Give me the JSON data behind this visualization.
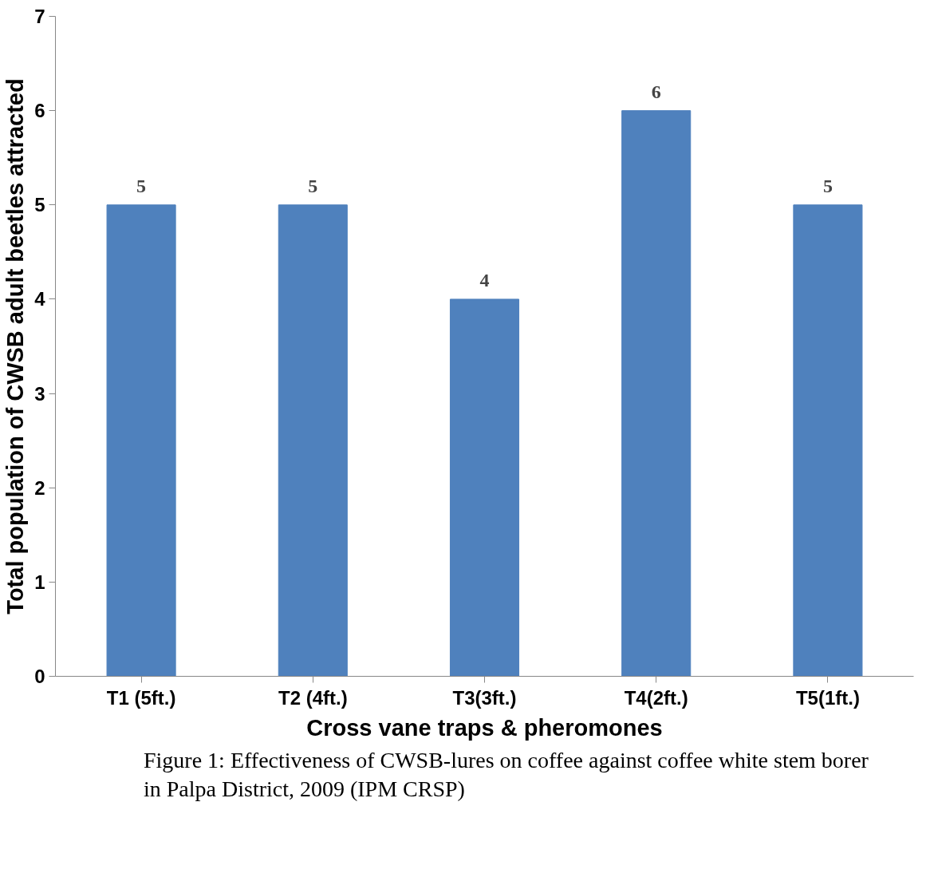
{
  "chart_data": {
    "type": "bar",
    "xlabel": "Cross vane traps & pheromones",
    "ylabel": "Total population of CWSB adult beetles attracted",
    "categories": [
      "T1 (5ft.)",
      "T2 (4ft.)",
      "T3(3ft.)",
      "T4(2ft.)",
      "T5(1ft.)"
    ],
    "values": [
      5,
      5,
      4,
      6,
      5
    ],
    "color": "#4f81bd",
    "ylim": [
      0,
      7
    ],
    "yticks": [
      0,
      1,
      2,
      3,
      4,
      5,
      6,
      7
    ],
    "data_labels": true,
    "annotations": [
      "Figure 1: Effectiveness of CWSB-lures on coffee against coffee white stem borer in Palpa District, 2009 (IPM CRSP)"
    ]
  }
}
